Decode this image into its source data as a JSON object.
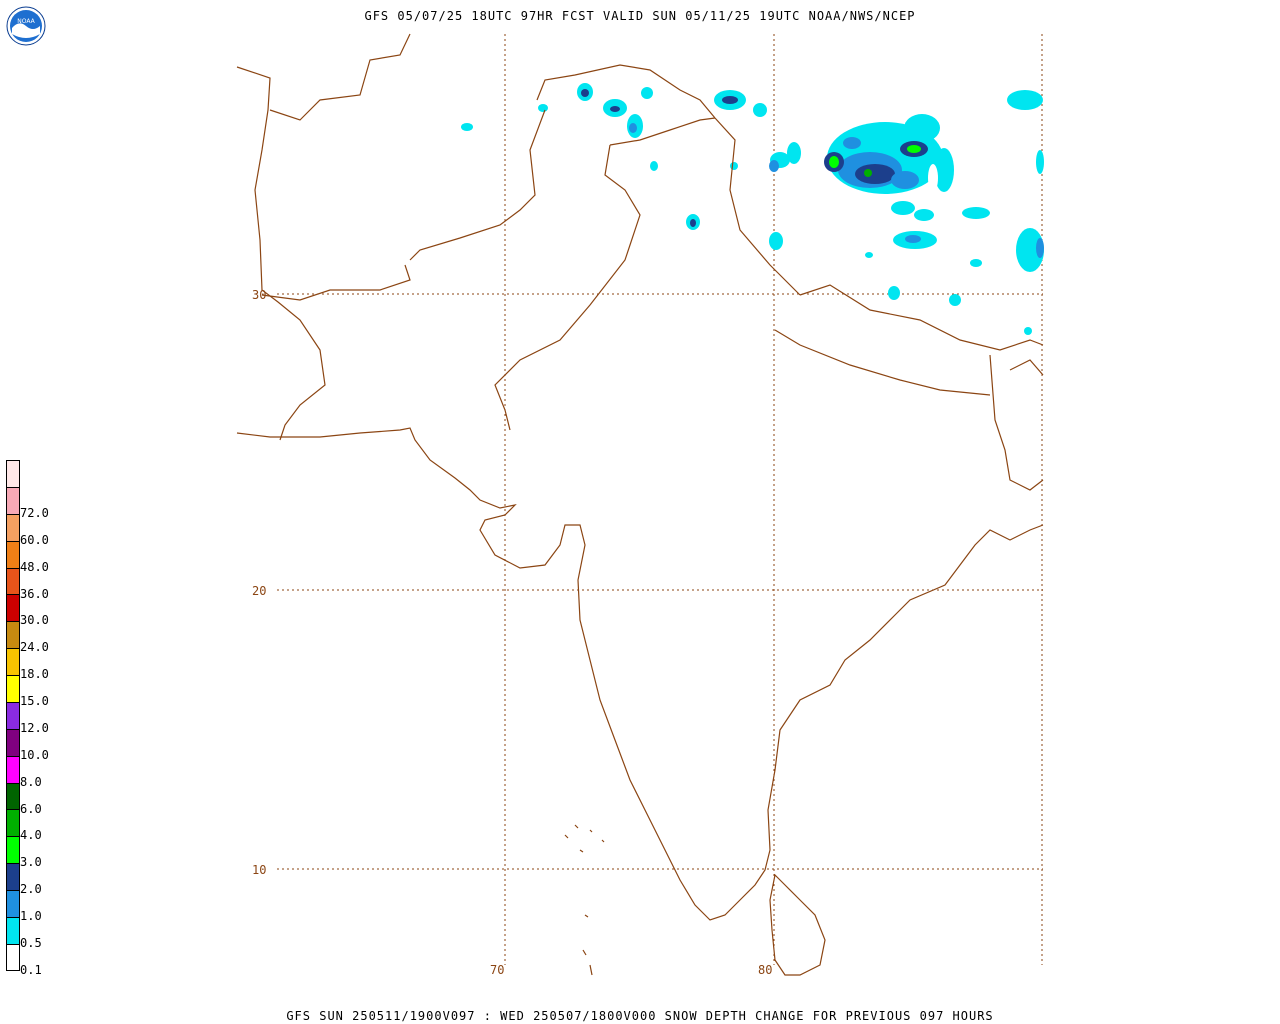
{
  "header": {
    "title": "GFS 05/07/25 18UTC 97HR FCST VALID SUN 05/11/25 19UTC NOAA/NWS/NCEP"
  },
  "footer": {
    "caption": "GFS SUN 250511/1900V097 : WED 250507/1800V000 SNOW DEPTH CHANGE FOR PREVIOUS 097 HOURS"
  },
  "logo": {
    "text": "NOAA",
    "icon": "noaa-logo-icon"
  },
  "colorbar": {
    "levels": [
      {
        "label": "",
        "color": "#ffe8e8"
      },
      {
        "label": "72.0",
        "color": "#f7a9b6"
      },
      {
        "label": "60.0",
        "color": "#f5a061"
      },
      {
        "label": "48.0",
        "color": "#f07f16"
      },
      {
        "label": "36.0",
        "color": "#e8541a"
      },
      {
        "label": "30.0",
        "color": "#cc0000"
      },
      {
        "label": "24.0",
        "color": "#c78a10"
      },
      {
        "label": "18.0",
        "color": "#f7c400"
      },
      {
        "label": "15.0",
        "color": "#ffff00"
      },
      {
        "label": "12.0",
        "color": "#8a2be2"
      },
      {
        "label": "10.0",
        "color": "#800080"
      },
      {
        "label": "8.0",
        "color": "#ff00ff"
      },
      {
        "label": "6.0",
        "color": "#006400"
      },
      {
        "label": "4.0",
        "color": "#00b000"
      },
      {
        "label": "3.0",
        "color": "#00ff00"
      },
      {
        "label": "2.0",
        "color": "#1c3f8c"
      },
      {
        "label": "1.0",
        "color": "#1f90e0"
      },
      {
        "label": "0.5",
        "color": "#00e5f0"
      },
      {
        "label": "0.1",
        "color": "#ffffff"
      }
    ]
  },
  "map": {
    "latitudes": [
      "30",
      "20",
      "10"
    ],
    "longitudes": [
      "70",
      "80"
    ],
    "border_color": "#8b4513",
    "grid_color": "#8b4513"
  }
}
